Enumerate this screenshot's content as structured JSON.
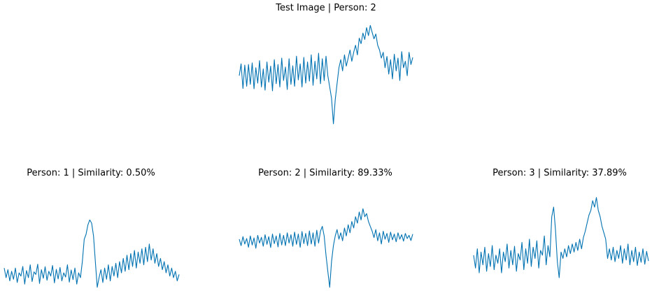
{
  "line_color": "#0072b2",
  "chart_data": [
    {
      "type": "line",
      "title": "Test Image | Person: 2",
      "axes": "off",
      "grid": false,
      "ylim": [
        -1.8,
        1.8
      ],
      "values": [
        0.05,
        0.42,
        -0.35,
        0.38,
        -0.28,
        0.4,
        -0.22,
        0.45,
        -0.36,
        0.3,
        -0.18,
        0.52,
        -0.3,
        0.26,
        -0.4,
        0.48,
        -0.15,
        0.35,
        -0.42,
        0.55,
        -0.2,
        0.4,
        -0.3,
        0.6,
        -0.1,
        0.32,
        -0.38,
        0.58,
        -0.22,
        0.36,
        -0.28,
        0.66,
        -0.08,
        0.42,
        -0.3,
        0.62,
        -0.18,
        0.48,
        -0.12,
        0.7,
        -0.25,
        0.5,
        -0.05,
        0.75,
        -0.2,
        0.58,
        -0.1,
        0.66,
        0.05,
        -0.3,
        -0.65,
        -1.45,
        -0.7,
        -0.2,
        0.3,
        0.55,
        0.2,
        0.7,
        0.35,
        0.6,
        0.85,
        0.5,
        0.78,
        1.0,
        0.7,
        1.22,
        1.05,
        1.38,
        1.18,
        1.55,
        1.3,
        1.62,
        1.4,
        1.2,
        1.35,
        1.0,
        0.85,
        0.6,
        0.78,
        0.3,
        0.65,
        0.1,
        0.55,
        -0.05,
        0.72,
        0.2,
        0.6,
        -0.1,
        0.8,
        0.3,
        0.5,
        0.05,
        0.78,
        0.4,
        0.62
      ]
    },
    {
      "type": "line",
      "title": "Person: 1 | Similarity: 0.50%",
      "axes": "off",
      "grid": false,
      "ylim": [
        -1.8,
        1.8
      ],
      "values": [
        -0.8,
        -1.1,
        -0.85,
        -1.2,
        -0.9,
        -1.15,
        -0.8,
        -1.25,
        -0.95,
        -1.05,
        -0.75,
        -1.3,
        -0.88,
        -1.1,
        -0.7,
        -1.22,
        -0.92,
        -1.0,
        -0.68,
        -1.28,
        -0.85,
        -1.12,
        -0.76,
        -1.18,
        -0.9,
        -1.05,
        -0.72,
        -1.26,
        -0.84,
        -1.14,
        -0.78,
        -1.2,
        -0.95,
        -1.08,
        -0.7,
        -1.24,
        -0.86,
        -1.16,
        -0.8,
        -1.3,
        -0.95,
        -1.1,
        -0.6,
        0.1,
        0.25,
        0.55,
        0.7,
        0.6,
        0.2,
        -0.6,
        -1.4,
        -1.1,
        -0.85,
        -1.25,
        -0.8,
        -1.15,
        -0.7,
        -1.2,
        -0.75,
        -1.05,
        -0.65,
        -1.1,
        -0.6,
        -0.95,
        -0.5,
        -0.9,
        -0.4,
        -0.85,
        -0.35,
        -0.75,
        -0.25,
        -0.8,
        -0.3,
        -0.65,
        -0.2,
        -0.7,
        -0.15,
        -0.6,
        -0.05,
        -0.55,
        -0.2,
        -0.65,
        -0.35,
        -0.75,
        -0.5,
        -0.85,
        -0.6,
        -0.95,
        -0.7,
        -1.05,
        -0.8,
        -1.1,
        -0.9,
        -1.2,
        -1.0
      ]
    },
    {
      "type": "line",
      "title": "Person: 2 | Similarity: 89.33%",
      "axes": "off",
      "grid": false,
      "ylim": [
        -1.8,
        1.8
      ],
      "values": [
        0.1,
        -0.1,
        0.18,
        -0.05,
        0.12,
        -0.15,
        0.2,
        -0.08,
        0.14,
        -0.18,
        0.22,
        -0.02,
        0.16,
        -0.12,
        0.24,
        -0.06,
        0.18,
        -0.16,
        0.26,
        -0.04,
        0.2,
        -0.14,
        0.28,
        -0.08,
        0.22,
        -0.1,
        0.3,
        -0.02,
        0.24,
        -0.12,
        0.32,
        -0.06,
        0.26,
        -0.15,
        0.34,
        -0.04,
        0.28,
        -0.1,
        0.36,
        -0.05,
        0.3,
        -0.12,
        0.38,
        -0.02,
        0.35,
        0.5,
        0.2,
        -0.4,
        -0.9,
        -1.4,
        -0.6,
        -0.1,
        0.2,
        0.4,
        0.1,
        0.3,
        0.05,
        0.45,
        0.2,
        0.55,
        0.3,
        0.65,
        0.45,
        0.8,
        0.6,
        0.95,
        0.7,
        1.05,
        0.8,
        0.9,
        0.65,
        0.5,
        0.35,
        0.15,
        0.4,
        0.05,
        0.3,
        -0.05,
        0.35,
        0.1,
        0.28,
        0.0,
        0.32,
        0.08,
        0.26,
        0.02,
        0.3,
        0.1,
        0.24,
        0.04,
        0.28,
        0.12,
        0.22,
        0.06,
        0.26
      ]
    },
    {
      "type": "line",
      "title": "Person: 3 | Similarity: 37.89%",
      "axes": "off",
      "grid": false,
      "ylim": [
        -1.8,
        1.8
      ],
      "values": [
        -0.4,
        -0.8,
        -0.2,
        -0.95,
        -0.3,
        -0.7,
        -0.15,
        -0.9,
        -0.35,
        -0.75,
        -0.1,
        -0.85,
        -0.4,
        -0.65,
        -0.2,
        -0.95,
        -0.3,
        -0.6,
        -0.05,
        -0.8,
        -0.25,
        -0.7,
        -0.12,
        -0.9,
        -0.35,
        -0.55,
        0.0,
        -0.85,
        -0.2,
        -0.65,
        0.1,
        -0.75,
        -0.15,
        -0.5,
        0.05,
        -0.8,
        -0.25,
        -0.4,
        0.2,
        -0.7,
        -0.1,
        -0.45,
        0.8,
        1.1,
        0.4,
        -0.6,
        -1.1,
        -0.3,
        -0.5,
        -0.2,
        -0.45,
        -0.1,
        -0.35,
        -0.05,
        -0.3,
        0.0,
        -0.25,
        0.1,
        -0.2,
        0.15,
        0.35,
        0.6,
        0.85,
        1.0,
        1.3,
        1.1,
        1.4,
        1.0,
        0.8,
        0.5,
        0.3,
        0.1,
        -0.5,
        -0.2,
        -0.55,
        -0.15,
        -0.6,
        -0.25,
        -0.5,
        -0.1,
        -0.65,
        -0.2,
        -0.55,
        -0.05,
        -0.7,
        -0.25,
        -0.6,
        -0.15,
        -0.72,
        -0.3,
        -0.62,
        -0.2,
        -0.68,
        -0.28,
        -0.58
      ]
    }
  ]
}
